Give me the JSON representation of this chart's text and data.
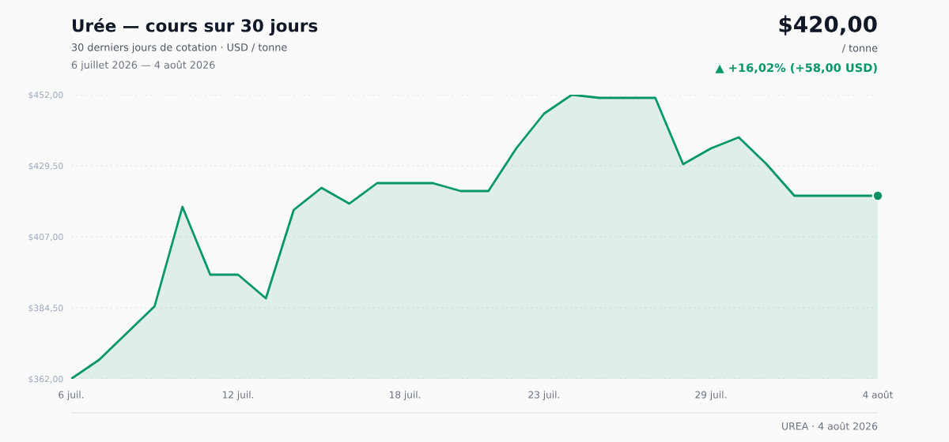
{
  "chart_data": {
    "type": "area",
    "title": "Urée — cours sur 30 jours",
    "subtitle": "30 derniers jours de cotation · USD / tonne",
    "annotations": [
      "6 juillet 2026 — 4 août 2026",
      "$420,00",
      "/ tonne",
      "▲ +16,02% (+58,00 USD)",
      "UREA · 4 août 2026"
    ],
    "x": [
      "2026-07-06",
      "2026-07-07",
      "2026-07-08",
      "2026-07-09",
      "2026-07-10",
      "2026-07-11",
      "2026-07-12",
      "2026-07-13",
      "2026-07-14",
      "2026-07-15",
      "2026-07-16",
      "2026-07-17",
      "2026-07-18",
      "2026-07-19",
      "2026-07-20",
      "2026-07-21",
      "2026-07-22",
      "2026-07-23",
      "2026-07-24",
      "2026-07-25",
      "2026-07-26",
      "2026-07-27",
      "2026-07-28",
      "2026-07-29",
      "2026-07-30",
      "2026-07-31",
      "2026-08-01",
      "2026-08-02",
      "2026-08-03",
      "2026-08-04"
    ],
    "series": [
      {
        "color": "#059669",
        "values": [
          362,
          368,
          376.5,
          385,
          416.5,
          395,
          395,
          387.5,
          415.5,
          422.5,
          417.5,
          424,
          424,
          424,
          421.5,
          421.5,
          435,
          446,
          452,
          451,
          451,
          451,
          430,
          435,
          438.5,
          430,
          420,
          420,
          420,
          420
        ]
      },
      {
        "type": "scatter",
        "color": "#068f63",
        "marker": "circle",
        "x": [
          "2026-08-04"
        ],
        "values": [
          420
        ]
      }
    ],
    "xlim": [
      "2026-07-06",
      "2026-08-04"
    ],
    "xticks": [
      {
        "value": "2026-07-06",
        "label": "6 juil."
      },
      {
        "value": "2026-07-12",
        "label": "12 juil."
      },
      {
        "value": "2026-07-18",
        "label": "18 juil."
      },
      {
        "value": "2026-07-23",
        "label": "23 juil."
      },
      {
        "value": "2026-07-29",
        "label": "29 juil."
      },
      {
        "value": "2026-08-04",
        "label": "4 août"
      }
    ],
    "ylim": [
      362,
      452
    ],
    "yticks": [
      {
        "value": 362,
        "label": "$362,00"
      },
      {
        "value": 384.5,
        "label": "$384,50"
      },
      {
        "value": 407,
        "label": "$407,00"
      },
      {
        "value": 429.5,
        "label": "$429,50"
      },
      {
        "value": 452,
        "label": "$452,00"
      }
    ],
    "grid": "y"
  }
}
